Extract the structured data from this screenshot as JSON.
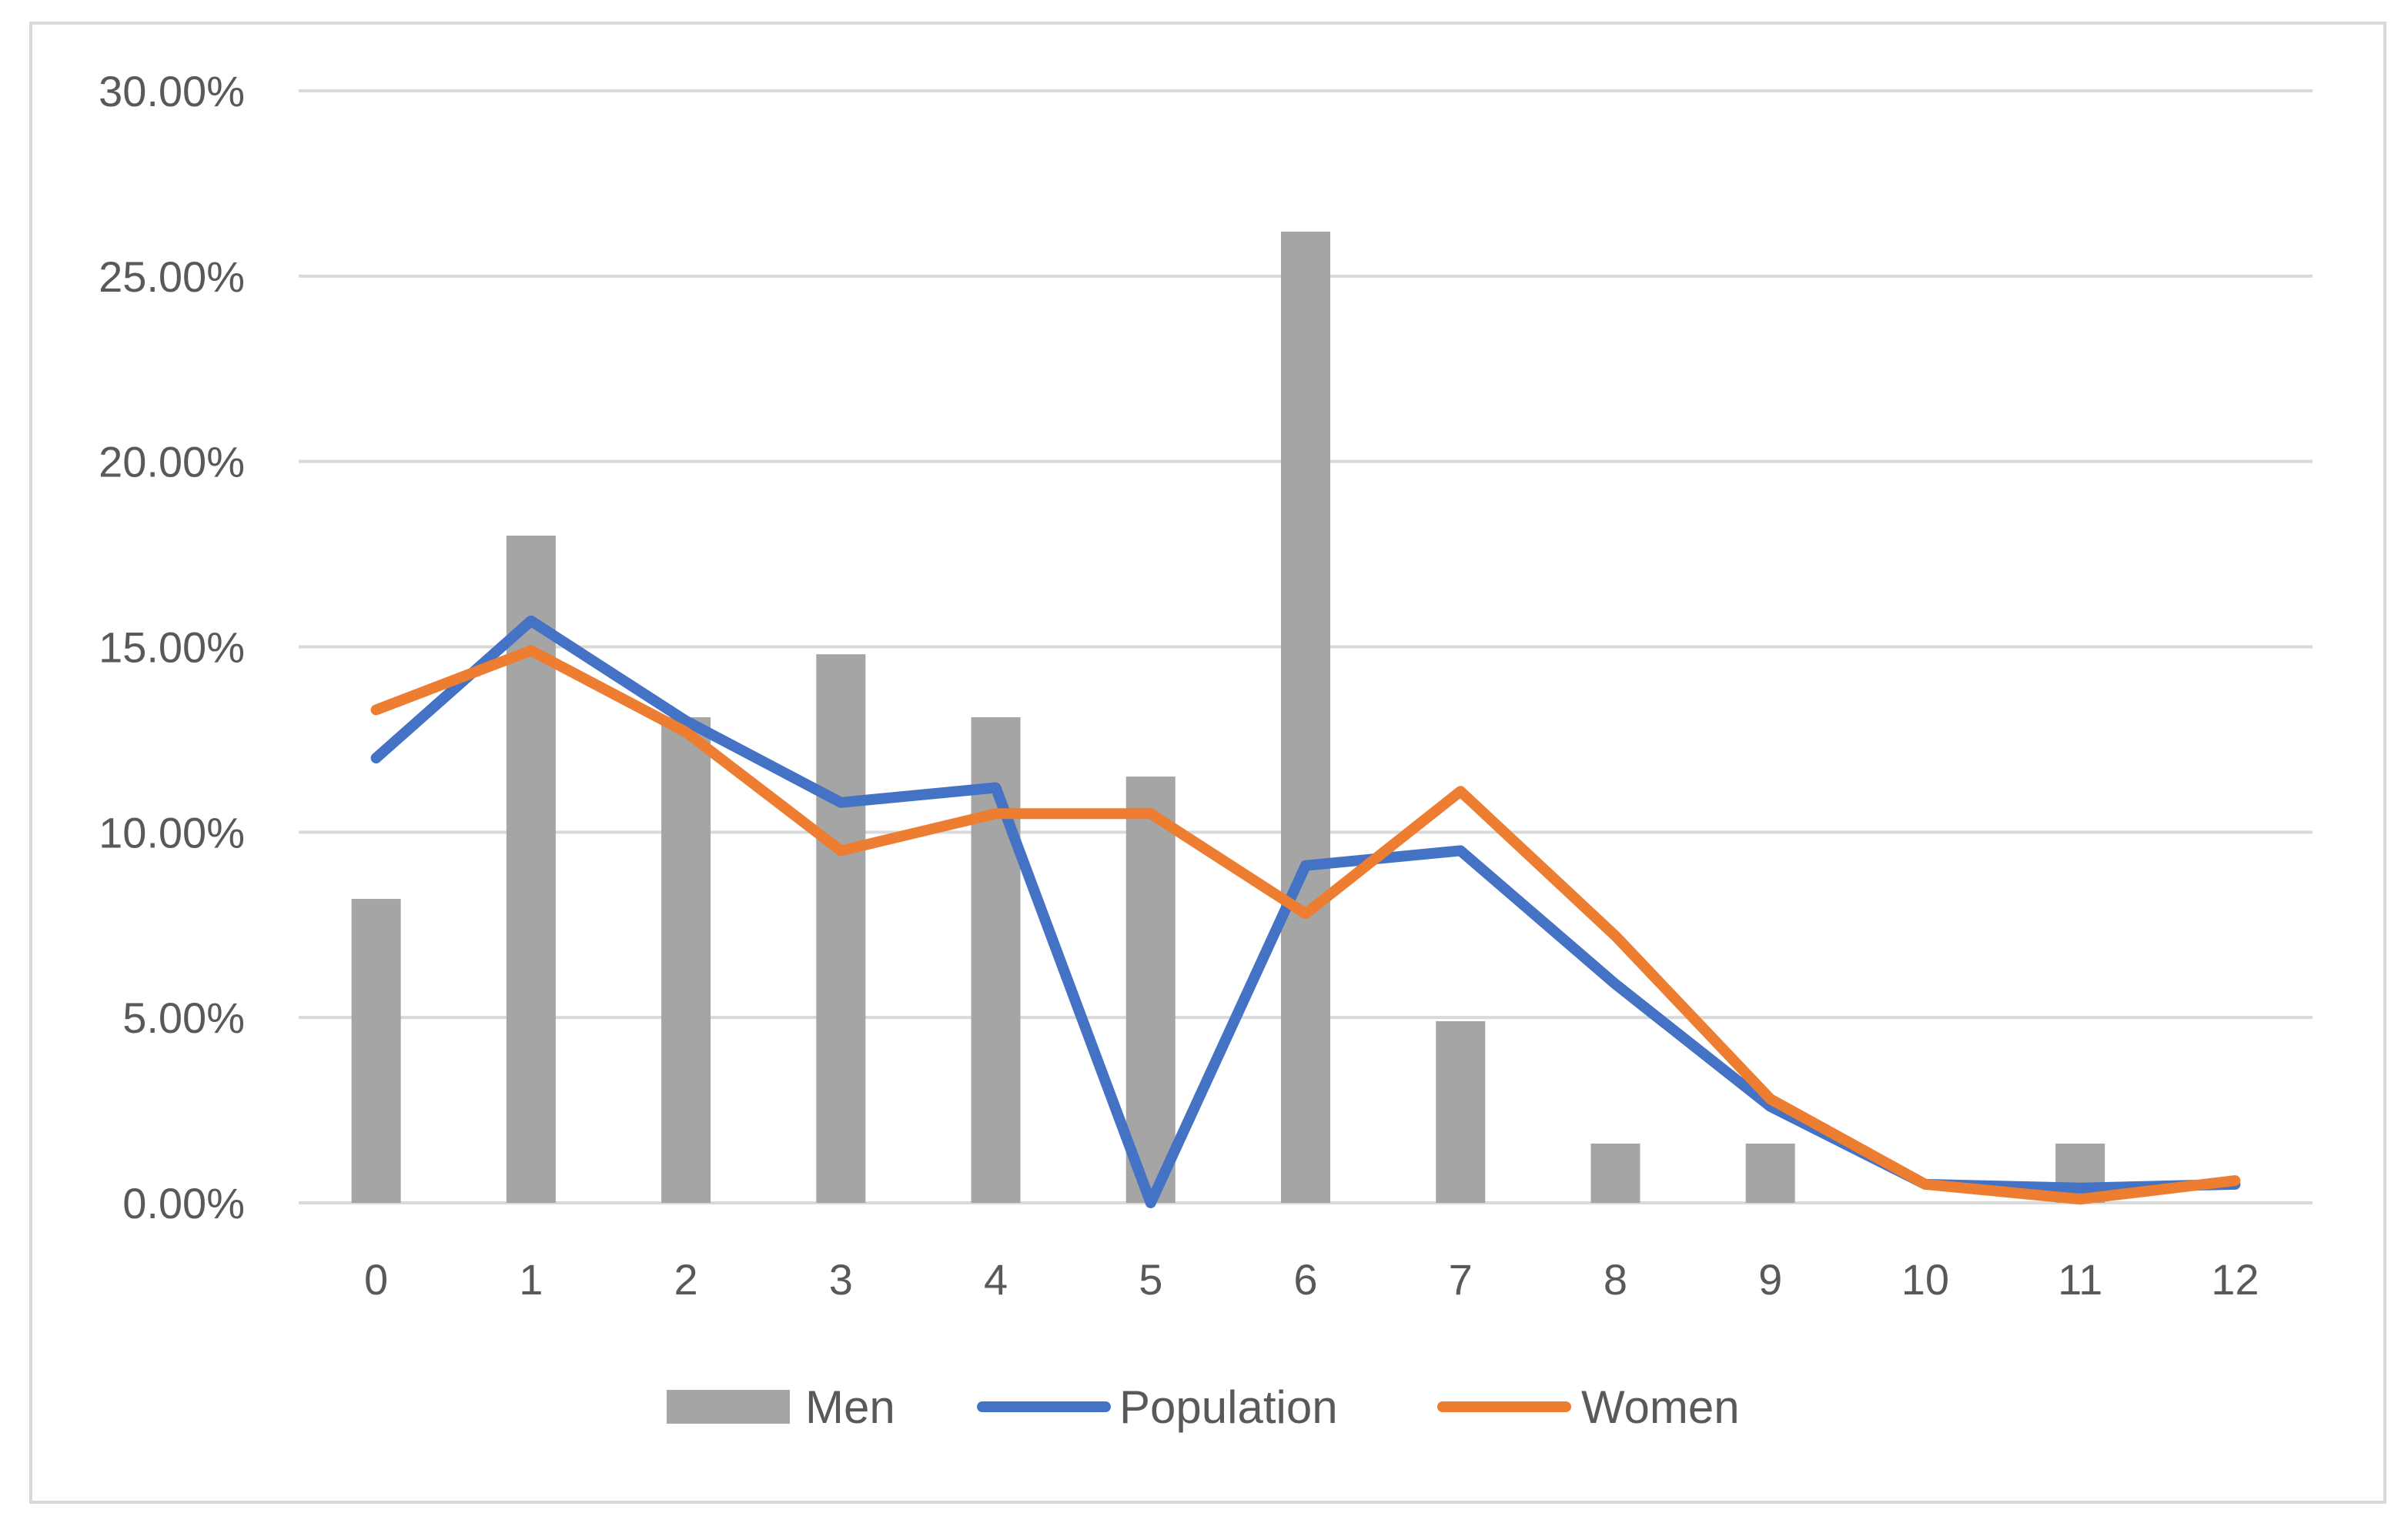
{
  "chart_data": {
    "type": "bar",
    "title": "",
    "xlabel": "",
    "ylabel": "",
    "categories": [
      "0",
      "1",
      "2",
      "3",
      "4",
      "5",
      "6",
      "7",
      "8",
      "9",
      "10",
      "11",
      "12"
    ],
    "ylim": [
      0,
      0.3
    ],
    "yticks": [
      0,
      0.05,
      0.1,
      0.15,
      0.2,
      0.25,
      0.3
    ],
    "ytick_labels": [
      "0.00%",
      "5.00%",
      "10.00%",
      "15.00%",
      "20.00%",
      "25.00%",
      "30.00%"
    ],
    "grid": true,
    "legend_position": "bottom",
    "series": [
      {
        "name": "Men",
        "type": "bar",
        "color": "#a5a5a5",
        "values": [
          0.082,
          0.18,
          0.131,
          0.148,
          0.131,
          0.115,
          0.262,
          0.049,
          0.016,
          0.016,
          0.0,
          0.016,
          0.0
        ]
      },
      {
        "name": "Population",
        "type": "line",
        "color": "#4472c4",
        "values": [
          0.12,
          0.157,
          0.13,
          0.108,
          0.112,
          0.0,
          0.091,
          0.095,
          0.059,
          0.026,
          0.005,
          0.004,
          0.005
        ]
      },
      {
        "name": "Women",
        "type": "line",
        "color": "#ed7d31",
        "values": [
          0.133,
          0.149,
          0.127,
          0.095,
          0.105,
          0.105,
          0.078,
          0.111,
          0.072,
          0.028,
          0.005,
          0.001,
          0.006
        ]
      }
    ],
    "legend": [
      "Men",
      "Population",
      "Women"
    ]
  }
}
